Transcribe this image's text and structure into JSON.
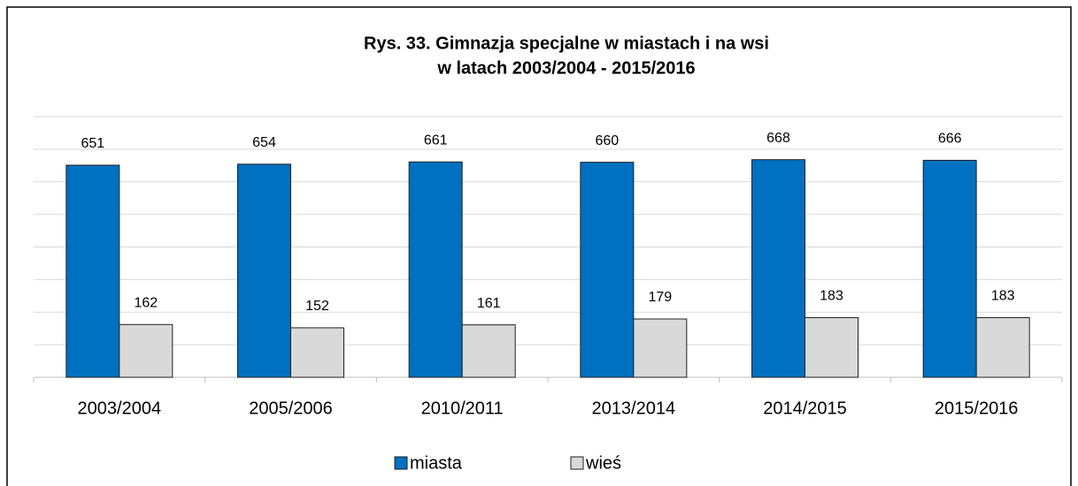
{
  "chart_data": {
    "type": "bar",
    "title": [
      "Rys. 33. Gimnazja specjalne w miastach i na wsi",
      "w latach 2003/2004 - 2015/2016"
    ],
    "categories": [
      "2003/2004",
      "2005/2006",
      "2010/2011",
      "2013/2014",
      "2014/2015",
      "2015/2016"
    ],
    "series": [
      {
        "name": "miasta",
        "color": "#0070c0",
        "values": [
          651,
          654,
          661,
          660,
          668,
          666
        ]
      },
      {
        "name": "wieś",
        "color": "#d9d9d9",
        "values": [
          162,
          152,
          161,
          179,
          183,
          183
        ]
      }
    ],
    "ylim": [
      0,
      800
    ],
    "yticks": [
      0,
      100,
      200,
      300,
      400,
      500,
      600,
      700,
      800
    ],
    "grid": true,
    "legend": "bottom"
  }
}
